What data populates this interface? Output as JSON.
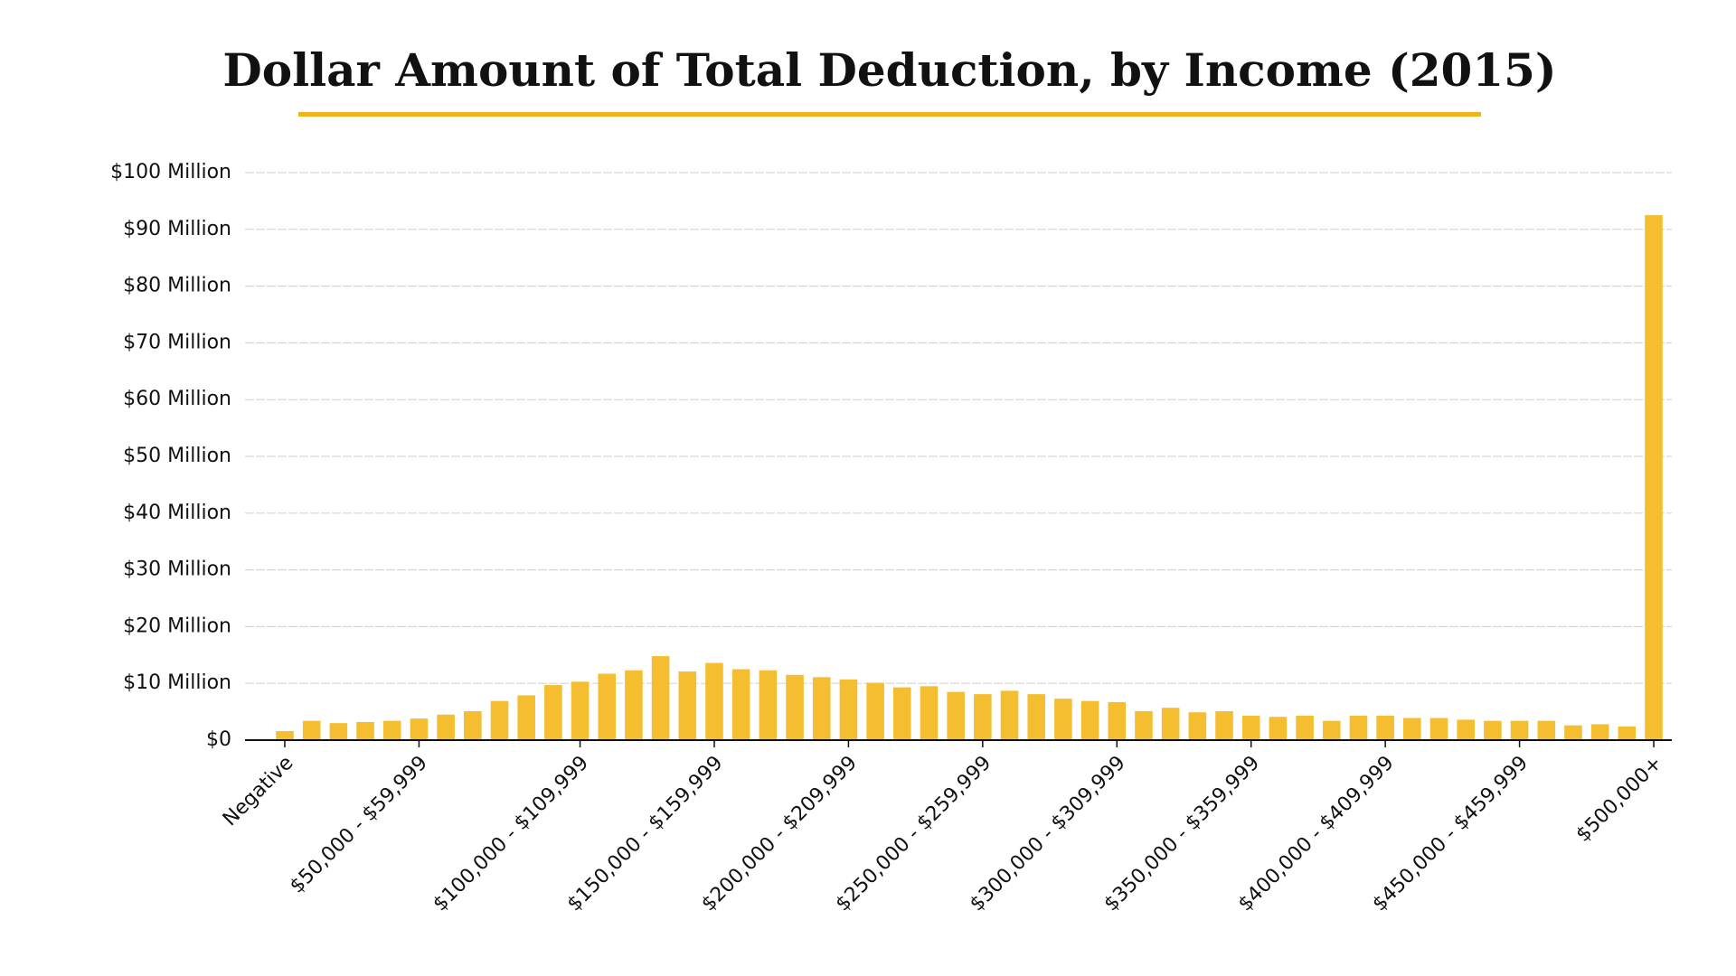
{
  "chart_data": {
    "type": "bar",
    "title": "Dollar Amount of Total Deduction, by Income (2015)",
    "categories": [
      "Negative",
      null,
      null,
      null,
      null,
      "$50,000 - $59,999",
      null,
      null,
      null,
      null,
      null,
      "$100,000 - $109,999",
      null,
      null,
      null,
      null,
      "$150,000 - $159,999",
      null,
      null,
      null,
      null,
      "$200,000 - $209,999",
      null,
      null,
      null,
      null,
      "$250,000 - $259,999",
      null,
      null,
      null,
      null,
      "$300,000 - $309,999",
      null,
      null,
      null,
      null,
      "$350,000 - $359,999",
      null,
      null,
      null,
      null,
      "$400,000 - $409,999",
      null,
      null,
      null,
      null,
      "$450,000 - $459,999",
      null,
      null,
      null,
      null,
      "$500,000+"
    ],
    "values": [
      1.6,
      3.4,
      3.0,
      3.2,
      3.4,
      3.8,
      4.5,
      5.1,
      6.9,
      7.9,
      9.7,
      10.3,
      11.7,
      12.3,
      14.8,
      12.1,
      13.6,
      12.5,
      12.3,
      11.5,
      11.1,
      10.7,
      10.1,
      9.3,
      9.5,
      8.5,
      8.1,
      8.7,
      8.1,
      7.3,
      6.9,
      6.7,
      5.1,
      5.7,
      4.9,
      5.1,
      4.3,
      4.1,
      4.3,
      3.4,
      4.3,
      4.3,
      3.9,
      3.9,
      3.6,
      3.4,
      3.4,
      3.4,
      2.6,
      2.8,
      2.4,
      92.5
    ],
    "color": "#f4be30",
    "ylim": [
      0,
      100
    ],
    "yticks": [
      {
        "value": 0,
        "label": "$0"
      },
      {
        "value": 10,
        "label": "$10 Million"
      },
      {
        "value": 20,
        "label": "$20 Million"
      },
      {
        "value": 30,
        "label": "$30 Million"
      },
      {
        "value": 40,
        "label": "$40 Million"
      },
      {
        "value": 50,
        "label": "$50 Million"
      },
      {
        "value": 60,
        "label": "$60 Million"
      },
      {
        "value": 70,
        "label": "$70 Million"
      },
      {
        "value": 80,
        "label": "$80 Million"
      },
      {
        "value": 90,
        "label": "$90 Million"
      },
      {
        "value": 100,
        "label": "$100 Million"
      }
    ],
    "grid": true
  }
}
